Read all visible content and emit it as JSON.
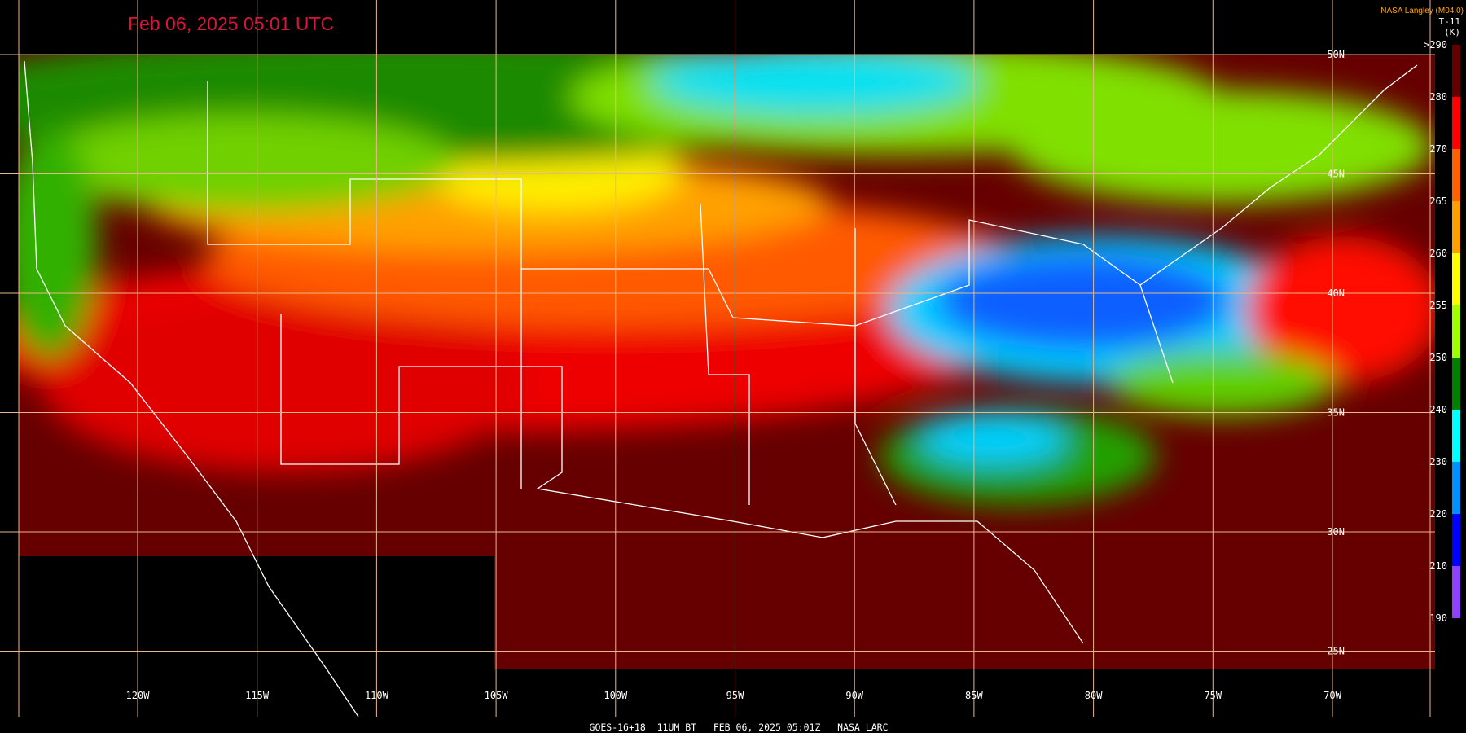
{
  "header": {
    "title": "Feb 06, 2025 05:01 UTC",
    "credit": "NASA Langley (M04.0)",
    "product": "T-11",
    "unit": "(K)"
  },
  "grid": {
    "longitudes": [
      "120W",
      "115W",
      "110W",
      "105W",
      "100W",
      "95W",
      "90W",
      "85W",
      "80W",
      "75W",
      "70W"
    ],
    "latitudes": [
      "50N",
      "45N",
      "40N",
      "35N",
      "30N",
      "25N"
    ]
  },
  "colorbar": {
    "labels": [
      ">290",
      "280",
      "270",
      "265",
      "260",
      "255",
      "250",
      "240",
      "230",
      "220",
      "210",
      "190"
    ],
    "colors": [
      "#640000",
      "#ff0000",
      "#ff6000",
      "#ffa000",
      "#ffff00",
      "#a0ff00",
      "#008000",
      "#00ffff",
      "#0090ff",
      "#0000ff",
      "#9040ff"
    ]
  },
  "footer": {
    "text": "GOES-16+18  11UM BT   FEB 06, 2025 05:01Z   NASA LARC"
  }
}
